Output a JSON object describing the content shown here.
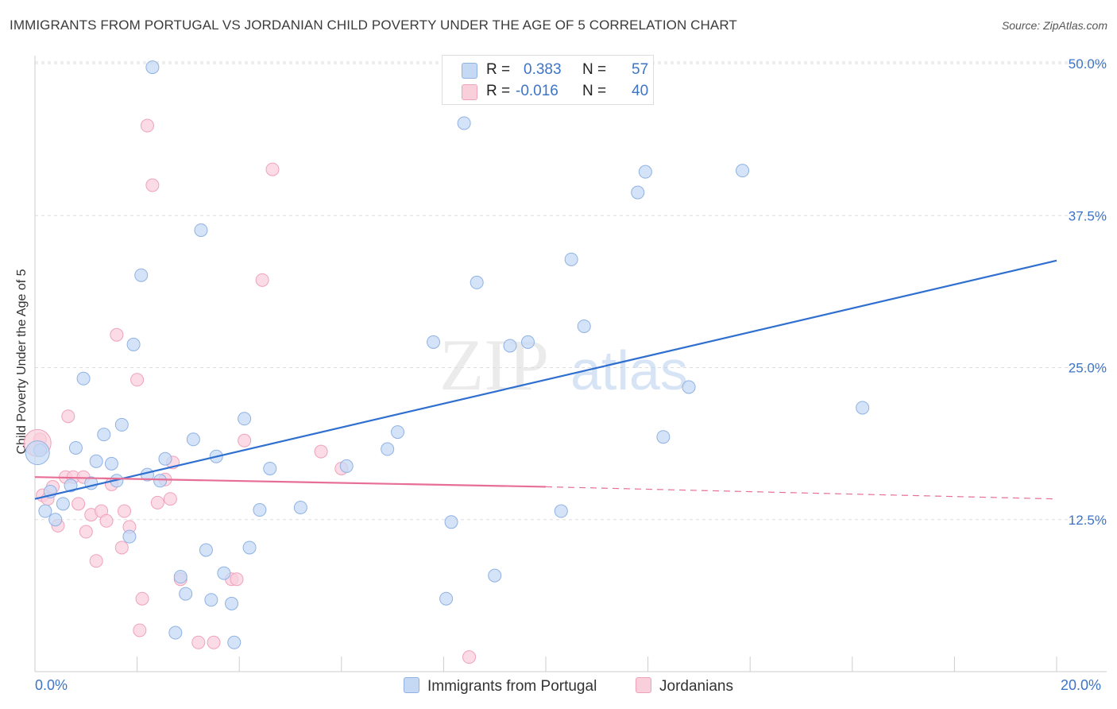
{
  "title": "IMMIGRANTS FROM PORTUGAL VS JORDANIAN CHILD POVERTY UNDER THE AGE OF 5 CORRELATION CHART",
  "source": "Source: ZipAtlas.com",
  "watermark": {
    "zip": "ZIP",
    "atlas": "atlas"
  },
  "colors": {
    "blue_fill": "#c5d9f5",
    "blue_stroke": "#8fb2e3",
    "blue_line": "#2f6fd0",
    "pink_fill": "#f9cfdc",
    "pink_stroke": "#efa3bb",
    "pink_line": "#e76f96",
    "tick": "#3d74c6",
    "grid": "#dddddd"
  },
  "legend": {
    "r_label": "R =",
    "n_label": "N =",
    "series": [
      {
        "r": "0.383",
        "n": "57"
      },
      {
        "r": "-0.016",
        "n": "40"
      }
    ]
  },
  "x_axis": {
    "min_label": "0.0%",
    "max_label": "20.0%"
  },
  "chart_data": {
    "type": "scatter",
    "title": "IMMIGRANTS FROM PORTUGAL VS JORDANIAN CHILD POVERTY UNDER THE AGE OF 5 CORRELATION CHART",
    "xlabel": "",
    "ylabel": "Child Poverty Under the Age of 5",
    "xlim": [
      0,
      20
    ],
    "ylim": [
      0,
      52
    ],
    "y_ticks": [
      12.5,
      25.0,
      37.5,
      50.0
    ],
    "y_tick_labels": [
      "12.5%",
      "25.0%",
      "37.5%",
      "50.0%"
    ],
    "x_tick_labels": [
      "0.0%",
      "20.0%"
    ],
    "grid": true,
    "legend_position": "top-center",
    "series": [
      {
        "name": "Immigrants from Portugal",
        "color": "#c5d9f5",
        "trend": {
          "x": [
            0,
            20
          ],
          "y": [
            14.2,
            33.8
          ]
        },
        "points": [
          [
            0.1,
            18.2
          ],
          [
            0.2,
            13.2
          ],
          [
            0.3,
            14.8
          ],
          [
            0.4,
            12.5
          ],
          [
            0.55,
            13.8
          ],
          [
            0.7,
            15.3
          ],
          [
            0.8,
            18.4
          ],
          [
            0.95,
            24.1
          ],
          [
            1.1,
            15.5
          ],
          [
            1.2,
            17.3
          ],
          [
            1.35,
            19.5
          ],
          [
            1.5,
            17.1
          ],
          [
            1.6,
            15.7
          ],
          [
            1.7,
            20.3
          ],
          [
            1.85,
            11.1
          ],
          [
            1.93,
            26.9
          ],
          [
            2.08,
            32.6
          ],
          [
            2.2,
            16.2
          ],
          [
            2.3,
            49.7
          ],
          [
            2.45,
            15.7
          ],
          [
            2.55,
            17.5
          ],
          [
            2.75,
            3.2
          ],
          [
            2.85,
            7.8
          ],
          [
            2.95,
            6.4
          ],
          [
            3.1,
            19.1
          ],
          [
            3.25,
            36.3
          ],
          [
            3.35,
            10.0
          ],
          [
            3.45,
            5.9
          ],
          [
            3.55,
            17.7
          ],
          [
            3.7,
            8.1
          ],
          [
            3.85,
            5.6
          ],
          [
            3.9,
            2.4
          ],
          [
            4.1,
            20.8
          ],
          [
            4.2,
            10.2
          ],
          [
            4.4,
            13.3
          ],
          [
            4.6,
            16.7
          ],
          [
            5.2,
            13.5
          ],
          [
            6.1,
            16.9
          ],
          [
            6.9,
            18.3
          ],
          [
            7.1,
            19.7
          ],
          [
            7.8,
            27.1
          ],
          [
            8.05,
            6.0
          ],
          [
            8.15,
            12.3
          ],
          [
            8.4,
            45.1
          ],
          [
            8.65,
            32.0
          ],
          [
            9.0,
            7.9
          ],
          [
            9.3,
            26.8
          ],
          [
            9.65,
            27.1
          ],
          [
            10.3,
            13.2
          ],
          [
            10.5,
            33.9
          ],
          [
            10.75,
            28.4
          ],
          [
            11.8,
            39.4
          ],
          [
            11.95,
            41.1
          ],
          [
            12.3,
            19.3
          ],
          [
            12.8,
            23.4
          ],
          [
            13.85,
            41.2
          ],
          [
            16.2,
            21.7
          ]
        ]
      },
      {
        "name": "Jordanians",
        "color": "#f9cfdc",
        "trend": {
          "x": [
            0,
            10
          ],
          "y": [
            16.0,
            15.2
          ],
          "extended": {
            "x": [
              10,
              20
            ],
            "y": [
              15.2,
              14.2
            ]
          }
        },
        "points": [
          [
            0.1,
            19.1
          ],
          [
            0.15,
            14.5
          ],
          [
            0.25,
            14.2
          ],
          [
            0.35,
            15.2
          ],
          [
            0.45,
            12.0
          ],
          [
            0.6,
            16.0
          ],
          [
            0.65,
            21.0
          ],
          [
            0.75,
            16.0
          ],
          [
            0.85,
            13.8
          ],
          [
            0.95,
            16.0
          ],
          [
            1.0,
            11.5
          ],
          [
            1.1,
            12.9
          ],
          [
            1.2,
            9.1
          ],
          [
            1.3,
            13.2
          ],
          [
            1.4,
            12.4
          ],
          [
            1.5,
            15.4
          ],
          [
            1.6,
            27.7
          ],
          [
            1.7,
            10.2
          ],
          [
            1.75,
            13.2
          ],
          [
            1.85,
            11.9
          ],
          [
            2.0,
            24.0
          ],
          [
            2.05,
            3.4
          ],
          [
            2.1,
            6.0
          ],
          [
            2.2,
            44.9
          ],
          [
            2.3,
            40.0
          ],
          [
            2.4,
            13.9
          ],
          [
            2.55,
            15.8
          ],
          [
            2.65,
            14.2
          ],
          [
            2.7,
            17.2
          ],
          [
            2.85,
            7.6
          ],
          [
            3.2,
            2.4
          ],
          [
            3.5,
            2.4
          ],
          [
            3.85,
            7.6
          ],
          [
            3.95,
            7.6
          ],
          [
            4.1,
            19.0
          ],
          [
            4.45,
            32.2
          ],
          [
            4.65,
            41.3
          ],
          [
            5.6,
            18.1
          ],
          [
            6.0,
            16.7
          ],
          [
            8.5,
            1.2
          ]
        ]
      }
    ]
  }
}
